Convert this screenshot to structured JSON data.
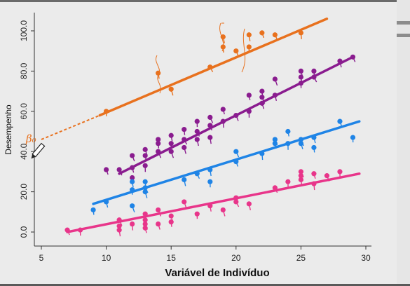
{
  "chart_data": {
    "type": "scatter",
    "title": "",
    "xlabel": "Variável de Indivíduo",
    "ylabel": "Desempenho",
    "xlim": [
      4,
      30.5
    ],
    "ylim": [
      -5,
      110
    ],
    "xticks": [
      "5",
      "10",
      "15",
      "20",
      "25",
      "30"
    ],
    "yticks": [
      "0.0",
      "20.0",
      "40.0",
      "60.0",
      "80.0",
      "100.0"
    ],
    "annotation": "β₀",
    "series": [
      {
        "color": "#e8711e",
        "line": [
          [
            9.5,
            58
          ],
          [
            27,
            106
          ]
        ],
        "extension": [
          [
            5,
            46
          ],
          [
            9.5,
            58
          ]
        ],
        "points": [
          [
            10,
            60
          ],
          [
            14,
            79
          ],
          [
            15,
            71
          ],
          [
            18,
            82
          ],
          [
            19,
            92
          ],
          [
            19,
            97
          ],
          [
            20,
            90
          ],
          [
            21,
            92
          ],
          [
            21,
            98
          ],
          [
            22,
            99
          ],
          [
            23,
            98
          ],
          [
            25,
            99
          ]
        ]
      },
      {
        "color": "#8a1c8f",
        "line": [
          [
            11,
            29
          ],
          [
            29,
            87
          ]
        ],
        "points": [
          [
            10,
            31
          ],
          [
            11,
            31
          ],
          [
            12,
            27
          ],
          [
            12,
            32
          ],
          [
            12,
            38
          ],
          [
            13,
            33
          ],
          [
            13,
            38
          ],
          [
            13,
            41
          ],
          [
            14,
            40
          ],
          [
            14,
            44
          ],
          [
            14,
            46
          ],
          [
            15,
            40
          ],
          [
            15,
            44
          ],
          [
            15,
            48
          ],
          [
            16,
            42
          ],
          [
            16,
            46
          ],
          [
            16,
            51
          ],
          [
            17,
            46
          ],
          [
            17,
            50
          ],
          [
            17,
            55
          ],
          [
            18,
            47
          ],
          [
            18,
            53
          ],
          [
            18,
            57
          ],
          [
            19,
            55
          ],
          [
            19,
            61
          ],
          [
            20,
            58
          ],
          [
            21,
            60
          ],
          [
            21,
            68
          ],
          [
            22,
            64
          ],
          [
            22,
            67
          ],
          [
            22,
            70
          ],
          [
            23,
            68
          ],
          [
            23,
            76
          ],
          [
            25,
            74
          ],
          [
            25,
            77
          ],
          [
            25,
            80
          ],
          [
            26,
            77
          ],
          [
            26,
            80
          ],
          [
            28,
            85
          ],
          [
            29,
            87
          ]
        ]
      },
      {
        "color": "#1f84e6",
        "line": [
          [
            9,
            14
          ],
          [
            29.5,
            55
          ]
        ],
        "points": [
          [
            9,
            11
          ],
          [
            10,
            15
          ],
          [
            12,
            13
          ],
          [
            12,
            21
          ],
          [
            12,
            25
          ],
          [
            13,
            20
          ],
          [
            13,
            22
          ],
          [
            13,
            25
          ],
          [
            16,
            26
          ],
          [
            17,
            29
          ],
          [
            18,
            25
          ],
          [
            18,
            31
          ],
          [
            20,
            35
          ],
          [
            20,
            40
          ],
          [
            22,
            39
          ],
          [
            23,
            44
          ],
          [
            23,
            46
          ],
          [
            24,
            44
          ],
          [
            24,
            50
          ],
          [
            25,
            44
          ],
          [
            25,
            46
          ],
          [
            26,
            42
          ],
          [
            26,
            47
          ],
          [
            28,
            55
          ],
          [
            29,
            47
          ]
        ]
      },
      {
        "color": "#e8358a",
        "line": [
          [
            7,
            0
          ],
          [
            29.5,
            29
          ]
        ],
        "points": [
          [
            7,
            1
          ],
          [
            8,
            1
          ],
          [
            11,
            1
          ],
          [
            11,
            3
          ],
          [
            11,
            6
          ],
          [
            12,
            4
          ],
          [
            13,
            2
          ],
          [
            13,
            4
          ],
          [
            13,
            6
          ],
          [
            13,
            9
          ],
          [
            14,
            4
          ],
          [
            14,
            11
          ],
          [
            15,
            5
          ],
          [
            15,
            8
          ],
          [
            16,
            15
          ],
          [
            17,
            9
          ],
          [
            18,
            13
          ],
          [
            19,
            11
          ],
          [
            20,
            15
          ],
          [
            20,
            17
          ],
          [
            21,
            14
          ],
          [
            23,
            22
          ],
          [
            24,
            25
          ],
          [
            25,
            26
          ],
          [
            25,
            28
          ],
          [
            25,
            30
          ],
          [
            26,
            24
          ],
          [
            26,
            29
          ],
          [
            27,
            28
          ],
          [
            28,
            30
          ]
        ]
      }
    ]
  }
}
